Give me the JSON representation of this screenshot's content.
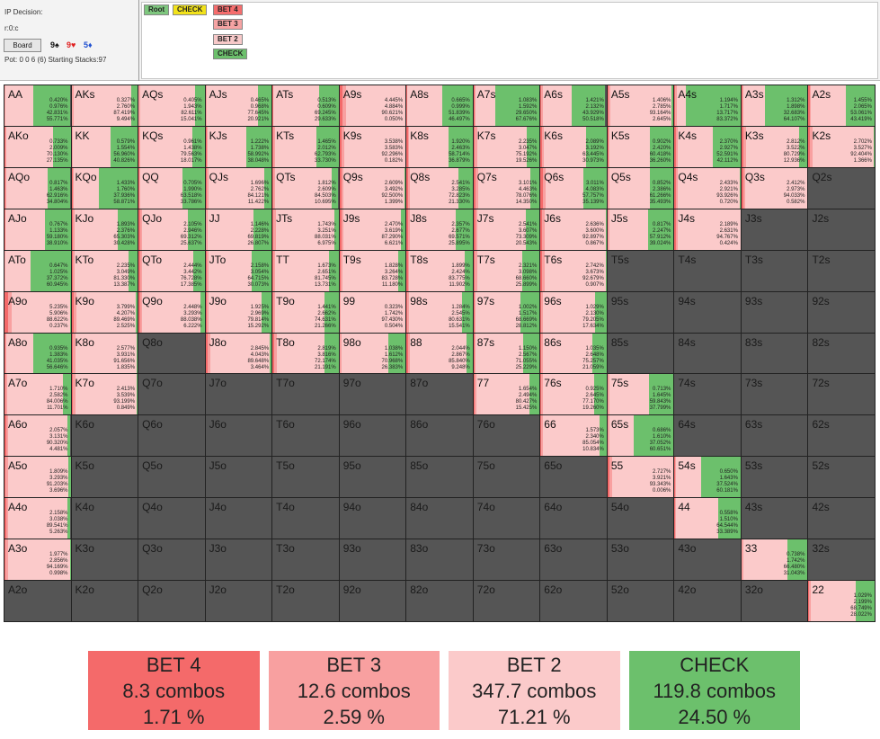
{
  "header": {
    "title": "IP Decision:",
    "path": "r:0:c",
    "board_button": "Board",
    "board_cards": [
      {
        "text": "9♠",
        "color": "#111111"
      },
      {
        "text": "9♥",
        "color": "#e02020"
      },
      {
        "text": "5♦",
        "color": "#2050d0"
      }
    ],
    "pot_info": "Pot: 0 0 6 (6) Starting Stacks:97"
  },
  "tree": {
    "nodes": [
      {
        "label": "Root",
        "color": "#7ec77e"
      },
      {
        "label": "CHECK",
        "color": "#f2e21a"
      },
      {
        "label": "BET 4",
        "color": "#f56d6d"
      },
      {
        "label": "BET 3",
        "color": "#f5a3a3"
      },
      {
        "label": "BET 2",
        "color": "#f7c9c9"
      },
      {
        "label": "CHECK",
        "color": "#6cc06c"
      }
    ]
  },
  "colors": {
    "bet4": "#f46a6a",
    "bet3": "#f8a0a0",
    "bet2": "#fbcaca",
    "check": "#6cc06c",
    "empty": "#555555"
  },
  "grid": {
    "cells": [
      {
        "name": "AA",
        "f": [
          "0.420%",
          "0.976%",
          "42.831%",
          "55.771%"
        ]
      },
      {
        "name": "AKs",
        "f": [
          "0.327%",
          "2.760%",
          "87.419%",
          "9.494%"
        ]
      },
      {
        "name": "AQs",
        "f": [
          "0.405%",
          "1.943%",
          "82.611%",
          "15.041%"
        ]
      },
      {
        "name": "AJs",
        "f": [
          "0.465%",
          "0.968%",
          "77.645%",
          "20.921%"
        ]
      },
      {
        "name": "ATs",
        "f": [
          "0.513%",
          "0.609%",
          "69.245%",
          "29.633%"
        ]
      },
      {
        "name": "A9s",
        "f": [
          "4.445%",
          "4.884%",
          "90.621%",
          "0.050%"
        ]
      },
      {
        "name": "A8s",
        "f": [
          "0.665%",
          "0.999%",
          "51.839%",
          "46.497%"
        ]
      },
      {
        "name": "A7s",
        "f": [
          "1.083%",
          "1.592%",
          "29.650%",
          "67.676%"
        ]
      },
      {
        "name": "A6s",
        "f": [
          "1.421%",
          "2.132%",
          "43.929%",
          "50.518%"
        ]
      },
      {
        "name": "A5s",
        "f": [
          "1.406%",
          "2.785%",
          "93.164%",
          "2.645%"
        ]
      },
      {
        "name": "A4s",
        "f": [
          "1.194%",
          "1.717%",
          "13.717%",
          "83.372%"
        ]
      },
      {
        "name": "A3s",
        "f": [
          "1.312%",
          "1.898%",
          "32.683%",
          "64.107%"
        ]
      },
      {
        "name": "A2s",
        "f": [
          "1.455%",
          "2.065%",
          "53.061%",
          "43.419%"
        ]
      },
      {
        "name": "AKo",
        "f": [
          "0.733%",
          "2.009%",
          "70.130%",
          "27.135%"
        ]
      },
      {
        "name": "KK",
        "f": [
          "0.579%",
          "1.554%",
          "56.960%",
          "40.826%"
        ]
      },
      {
        "name": "KQs",
        "f": [
          "0.961%",
          "1.438%",
          "79.563%",
          "18.017%"
        ]
      },
      {
        "name": "KJs",
        "f": [
          "1.222%",
          "1.738%",
          "58.992%",
          "38.048%"
        ]
      },
      {
        "name": "KTs",
        "f": [
          "1.465%",
          "2.012%",
          "62.793%",
          "33.730%"
        ]
      },
      {
        "name": "K9s",
        "f": [
          "3.538%",
          "3.583%",
          "92.296%",
          "0.182%"
        ]
      },
      {
        "name": "K8s",
        "f": [
          "1.920%",
          "2.463%",
          "58.714%",
          "36.879%"
        ]
      },
      {
        "name": "K7s",
        "f": [
          "2.235%",
          "3.047%",
          "75.192%",
          "19.526%"
        ]
      },
      {
        "name": "K6s",
        "f": [
          "2.089%",
          "3.192%",
          "63.445%",
          "30.973%"
        ]
      },
      {
        "name": "K5s",
        "f": [
          "0.902%",
          "2.420%",
          "60.418%",
          "36.260%"
        ]
      },
      {
        "name": "K4s",
        "f": [
          "2.370%",
          "2.927%",
          "52.591%",
          "42.112%"
        ]
      },
      {
        "name": "K3s",
        "f": [
          "2.812%",
          "3.522%",
          "80.729%",
          "12.936%"
        ]
      },
      {
        "name": "K2s",
        "f": [
          "2.702%",
          "3.527%",
          "92.404%",
          "1.366%"
        ]
      },
      {
        "name": "AQo",
        "f": [
          "0.817%",
          "1.463%",
          "62.916%",
          "34.804%"
        ]
      },
      {
        "name": "KQo",
        "f": [
          "1.433%",
          "1.760%",
          "37.936%",
          "58.871%"
        ]
      },
      {
        "name": "QQ",
        "f": [
          "0.705%",
          "1.990%",
          "63.518%",
          "33.786%"
        ]
      },
      {
        "name": "QJs",
        "f": [
          "1.696%",
          "2.762%",
          "84.121%",
          "11.422%"
        ]
      },
      {
        "name": "QTs",
        "f": [
          "1.812%",
          "2.609%",
          "84.503%",
          "10.695%"
        ]
      },
      {
        "name": "Q9s",
        "f": [
          "2.609%",
          "3.492%",
          "92.500%",
          "1.399%"
        ]
      },
      {
        "name": "Q8s",
        "f": [
          "2.541%",
          "3.285%",
          "72.823%",
          "21.330%"
        ]
      },
      {
        "name": "Q7s",
        "f": [
          "3.101%",
          "4.463%",
          "78.076%",
          "14.350%"
        ]
      },
      {
        "name": "Q6s",
        "f": [
          "3.011%",
          "4.083%",
          "57.757%",
          "35.139%"
        ]
      },
      {
        "name": "Q5s",
        "f": [
          "0.852%",
          "2.386%",
          "61.266%",
          "35.493%"
        ]
      },
      {
        "name": "Q4s",
        "f": [
          "2.433%",
          "2.921%",
          "93.926%",
          "0.720%"
        ]
      },
      {
        "name": "Q3s",
        "f": [
          "2.412%",
          "2.973%",
          "94.033%",
          "0.582%"
        ]
      },
      {
        "name": "Q2s",
        "f": []
      },
      {
        "name": "AJo",
        "f": [
          "0.767%",
          "1.133%",
          "59.180%",
          "38.910%"
        ]
      },
      {
        "name": "KJo",
        "f": [
          "1.893%",
          "2.376%",
          "65.303%",
          "30.428%"
        ]
      },
      {
        "name": "QJo",
        "f": [
          "2.105%",
          "2.946%",
          "69.312%",
          "25.637%"
        ]
      },
      {
        "name": "JJ",
        "f": [
          "1.146%",
          "2.228%",
          "69.819%",
          "26.807%"
        ]
      },
      {
        "name": "JTs",
        "f": [
          "1.743%",
          "3.251%",
          "88.031%",
          "6.975%"
        ]
      },
      {
        "name": "J9s",
        "f": [
          "2.470%",
          "3.619%",
          "87.290%",
          "6.621%"
        ]
      },
      {
        "name": "J8s",
        "f": [
          "2.357%",
          "2.677%",
          "69.571%",
          "25.895%"
        ]
      },
      {
        "name": "J7s",
        "f": [
          "2.541%",
          "3.607%",
          "73.309%",
          "20.543%"
        ]
      },
      {
        "name": "J6s",
        "f": [
          "2.636%",
          "3.600%",
          "92.897%",
          "0.867%"
        ]
      },
      {
        "name": "J5s",
        "f": [
          "0.817%",
          "2.247%",
          "57.912%",
          "39.024%"
        ]
      },
      {
        "name": "J4s",
        "f": [
          "2.189%",
          "2.631%",
          "94.767%",
          "0.424%"
        ]
      },
      {
        "name": "J3s",
        "f": []
      },
      {
        "name": "J2s",
        "f": []
      },
      {
        "name": "ATo",
        "f": [
          "0.647%",
          "1.025%",
          "37.372%",
          "60.945%"
        ]
      },
      {
        "name": "KTo",
        "f": [
          "2.235%",
          "3.049%",
          "81.330%",
          "13.387%"
        ]
      },
      {
        "name": "QTo",
        "f": [
          "2.444%",
          "3.442%",
          "76.728%",
          "17.385%"
        ]
      },
      {
        "name": "JTo",
        "f": [
          "2.158%",
          "3.054%",
          "64.715%",
          "30.073%"
        ]
      },
      {
        "name": "TT",
        "f": [
          "1.673%",
          "2.651%",
          "81.745%",
          "13.731%"
        ]
      },
      {
        "name": "T9s",
        "f": [
          "1.828%",
          "3.264%",
          "83.728%",
          "11.180%"
        ]
      },
      {
        "name": "T8s",
        "f": [
          "1.899%",
          "2.424%",
          "83.775%",
          "11.902%"
        ]
      },
      {
        "name": "T7s",
        "f": [
          "2.321%",
          "3.098%",
          "68.660%",
          "25.899%"
        ]
      },
      {
        "name": "T6s",
        "f": [
          "2.742%",
          "3.673%",
          "92.679%",
          "0.907%"
        ]
      },
      {
        "name": "T5s",
        "f": []
      },
      {
        "name": "T4s",
        "f": []
      },
      {
        "name": "T3s",
        "f": []
      },
      {
        "name": "T2s",
        "f": []
      },
      {
        "name": "A9o",
        "f": [
          "5.235%",
          "5.906%",
          "88.622%",
          "0.237%"
        ]
      },
      {
        "name": "K9o",
        "f": [
          "3.799%",
          "4.207%",
          "89.469%",
          "2.525%"
        ]
      },
      {
        "name": "Q9o",
        "f": [
          "2.448%",
          "3.293%",
          "88.038%",
          "6.222%"
        ]
      },
      {
        "name": "J9o",
        "f": [
          "1.925%",
          "2.969%",
          "79.814%",
          "15.292%"
        ]
      },
      {
        "name": "T9o",
        "f": [
          "1.441%",
          "2.662%",
          "74.631%",
          "21.266%"
        ]
      },
      {
        "name": "99",
        "f": [
          "0.323%",
          "1.742%",
          "97.430%",
          "0.504%"
        ]
      },
      {
        "name": "98s",
        "f": [
          "1.284%",
          "2.545%",
          "80.631%",
          "15.541%"
        ]
      },
      {
        "name": "97s",
        "f": [
          "1.002%",
          "1.517%",
          "68.669%",
          "28.812%"
        ]
      },
      {
        "name": "96s",
        "f": [
          "1.029%",
          "2.130%",
          "79.205%",
          "17.634%"
        ]
      },
      {
        "name": "95s",
        "f": []
      },
      {
        "name": "94s",
        "f": []
      },
      {
        "name": "93s",
        "f": []
      },
      {
        "name": "92s",
        "f": []
      },
      {
        "name": "A8o",
        "f": [
          "0.935%",
          "1.383%",
          "41.035%",
          "56.646%"
        ]
      },
      {
        "name": "K8o",
        "f": [
          "2.577%",
          "3.931%",
          "91.656%",
          "1.835%"
        ]
      },
      {
        "name": "Q8o",
        "f": []
      },
      {
        "name": "J8o",
        "f": [
          "2.845%",
          "4.043%",
          "89.648%",
          "3.464%"
        ]
      },
      {
        "name": "T8o",
        "f": [
          "2.819%",
          "3.816%",
          "72.174%",
          "21.191%"
        ]
      },
      {
        "name": "98o",
        "f": [
          "1.038%",
          "1.612%",
          "70.968%",
          "26.383%"
        ]
      },
      {
        "name": "88",
        "f": [
          "2.044%",
          "2.867%",
          "85.840%",
          "9.248%"
        ]
      },
      {
        "name": "87s",
        "f": [
          "1.150%",
          "2.567%",
          "71.055%",
          "25.229%"
        ]
      },
      {
        "name": "86s",
        "f": [
          "1.035%",
          "2.648%",
          "75.257%",
          "21.059%"
        ]
      },
      {
        "name": "85s",
        "f": []
      },
      {
        "name": "84s",
        "f": []
      },
      {
        "name": "83s",
        "f": []
      },
      {
        "name": "82s",
        "f": []
      },
      {
        "name": "A7o",
        "f": [
          "1.710%",
          "2.582%",
          "84.006%",
          "11.701%"
        ]
      },
      {
        "name": "K7o",
        "f": [
          "2.413%",
          "3.539%",
          "93.199%",
          "0.849%"
        ]
      },
      {
        "name": "Q7o",
        "f": []
      },
      {
        "name": "J7o",
        "f": []
      },
      {
        "name": "T7o",
        "f": []
      },
      {
        "name": "97o",
        "f": []
      },
      {
        "name": "87o",
        "f": []
      },
      {
        "name": "77",
        "f": [
          "1.654%",
          "2.494%",
          "80.427%",
          "15.425%"
        ]
      },
      {
        "name": "76s",
        "f": [
          "0.925%",
          "2.645%",
          "77.170%",
          "19.260%"
        ]
      },
      {
        "name": "75s",
        "f": [
          "0.713%",
          "1.645%",
          "59.843%",
          "37.799%"
        ]
      },
      {
        "name": "74s",
        "f": []
      },
      {
        "name": "73s",
        "f": []
      },
      {
        "name": "72s",
        "f": []
      },
      {
        "name": "A6o",
        "f": [
          "2.057%",
          "3.131%",
          "90.320%",
          "4.481%"
        ]
      },
      {
        "name": "K6o",
        "f": []
      },
      {
        "name": "Q6o",
        "f": []
      },
      {
        "name": "J6o",
        "f": []
      },
      {
        "name": "T6o",
        "f": []
      },
      {
        "name": "96o",
        "f": []
      },
      {
        "name": "86o",
        "f": []
      },
      {
        "name": "76o",
        "f": []
      },
      {
        "name": "66",
        "f": [
          "1.573%",
          "2.340%",
          "85.054%",
          "10.834%"
        ]
      },
      {
        "name": "65s",
        "f": [
          "0.686%",
          "1.610%",
          "37.052%",
          "60.651%"
        ]
      },
      {
        "name": "64s",
        "f": []
      },
      {
        "name": "63s",
        "f": []
      },
      {
        "name": "62s",
        "f": []
      },
      {
        "name": "A5o",
        "f": [
          "1.809%",
          "3.293%",
          "91.203%",
          "3.696%"
        ]
      },
      {
        "name": "K5o",
        "f": []
      },
      {
        "name": "Q5o",
        "f": []
      },
      {
        "name": "J5o",
        "f": []
      },
      {
        "name": "T5o",
        "f": []
      },
      {
        "name": "95o",
        "f": []
      },
      {
        "name": "85o",
        "f": []
      },
      {
        "name": "75o",
        "f": []
      },
      {
        "name": "65o",
        "f": []
      },
      {
        "name": "55",
        "f": [
          "2.727%",
          "3.921%",
          "93.343%",
          "0.006%"
        ]
      },
      {
        "name": "54s",
        "f": [
          "0.650%",
          "1.643%",
          "37.524%",
          "60.181%"
        ]
      },
      {
        "name": "53s",
        "f": []
      },
      {
        "name": "52s",
        "f": []
      },
      {
        "name": "A4o",
        "f": [
          "2.158%",
          "3.038%",
          "89.541%",
          "5.263%"
        ]
      },
      {
        "name": "K4o",
        "f": []
      },
      {
        "name": "Q4o",
        "f": []
      },
      {
        "name": "J4o",
        "f": []
      },
      {
        "name": "T4o",
        "f": []
      },
      {
        "name": "94o",
        "f": []
      },
      {
        "name": "84o",
        "f": []
      },
      {
        "name": "74o",
        "f": []
      },
      {
        "name": "64o",
        "f": []
      },
      {
        "name": "54o",
        "f": []
      },
      {
        "name": "44",
        "f": [
          "0.558%",
          "1.510%",
          "64.544%",
          "33.389%"
        ]
      },
      {
        "name": "43s",
        "f": []
      },
      {
        "name": "42s",
        "f": []
      },
      {
        "name": "A3o",
        "f": [
          "1.977%",
          "2.856%",
          "94.169%",
          "0.998%"
        ]
      },
      {
        "name": "K3o",
        "f": []
      },
      {
        "name": "Q3o",
        "f": []
      },
      {
        "name": "J3o",
        "f": []
      },
      {
        "name": "T3o",
        "f": []
      },
      {
        "name": "93o",
        "f": []
      },
      {
        "name": "83o",
        "f": []
      },
      {
        "name": "73o",
        "f": []
      },
      {
        "name": "63o",
        "f": []
      },
      {
        "name": "53o",
        "f": []
      },
      {
        "name": "43o",
        "f": []
      },
      {
        "name": "33",
        "f": [
          "0.738%",
          "1.742%",
          "66.480%",
          "31.043%"
        ]
      },
      {
        "name": "32s",
        "f": []
      },
      {
        "name": "A2o",
        "f": []
      },
      {
        "name": "K2o",
        "f": []
      },
      {
        "name": "Q2o",
        "f": []
      },
      {
        "name": "J2o",
        "f": []
      },
      {
        "name": "T2o",
        "f": []
      },
      {
        "name": "92o",
        "f": []
      },
      {
        "name": "82o",
        "f": []
      },
      {
        "name": "72o",
        "f": []
      },
      {
        "name": "62o",
        "f": []
      },
      {
        "name": "52o",
        "f": []
      },
      {
        "name": "42o",
        "f": []
      },
      {
        "name": "32o",
        "f": []
      },
      {
        "name": "22",
        "f": [
          "1.029%",
          "2.199%",
          "68.749%",
          "28.022%"
        ]
      }
    ]
  },
  "summary": [
    {
      "action": "BET 4",
      "combos": "8.3 combos",
      "percent": "1.71 %",
      "color": "#f46a6a"
    },
    {
      "action": "BET 3",
      "combos": "12.6 combos",
      "percent": "2.59 %",
      "color": "#f8a0a0"
    },
    {
      "action": "BET 2",
      "combos": "347.7 combos",
      "percent": "71.21 %",
      "color": "#fbcaca"
    },
    {
      "action": "CHECK",
      "combos": "119.8 combos",
      "percent": "24.50 %",
      "color": "#6cc06c"
    }
  ]
}
